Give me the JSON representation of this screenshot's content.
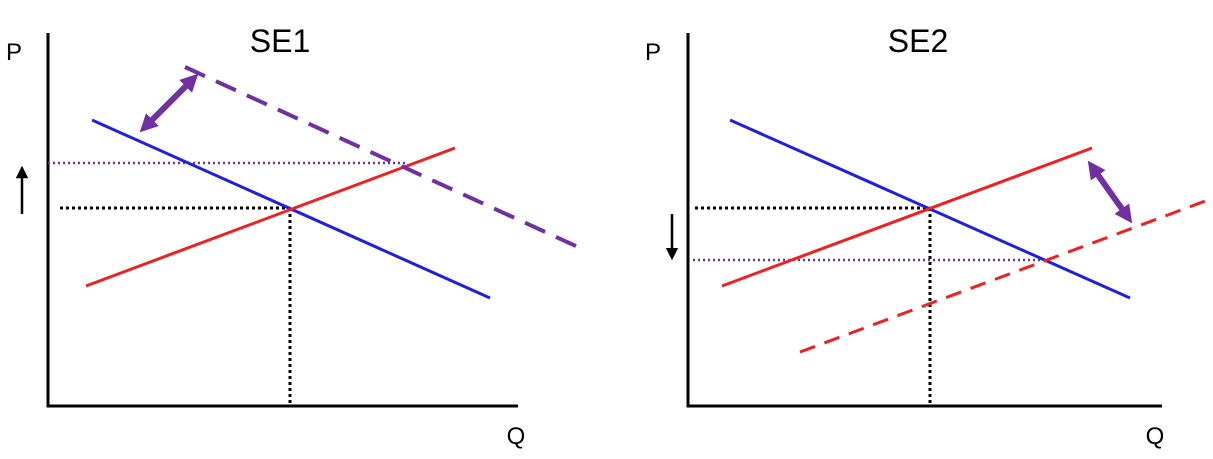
{
  "panels": [
    {
      "title": "SE1",
      "y_label": "P",
      "x_label": "Q"
    },
    {
      "title": "SE2",
      "y_label": "P",
      "x_label": "Q"
    }
  ]
}
